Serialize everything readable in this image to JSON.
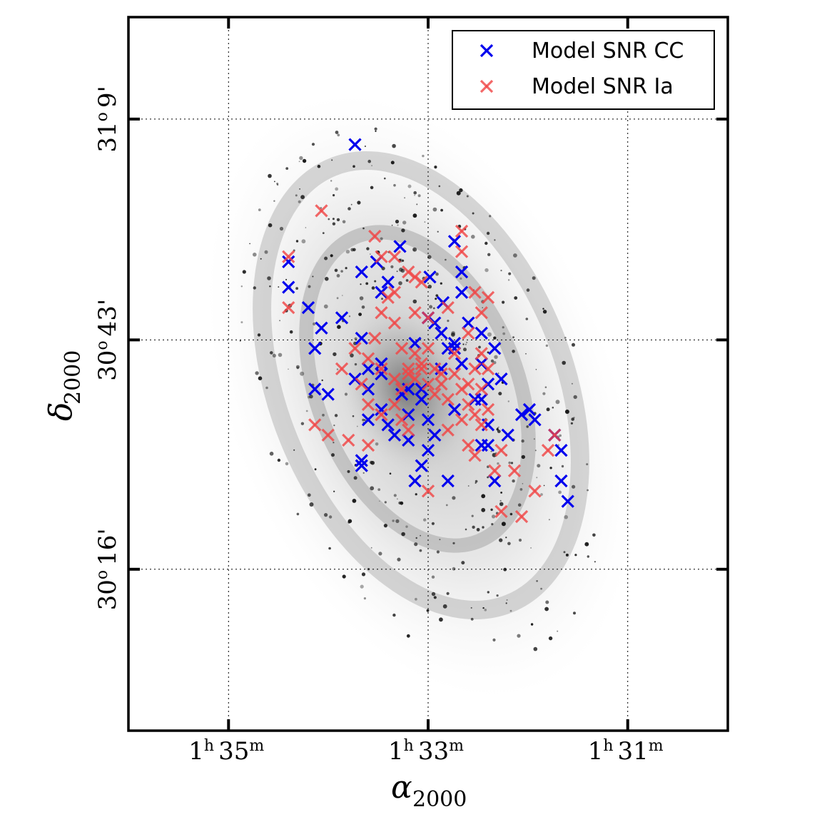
{
  "chart_data": {
    "type": "scatter",
    "background_image": "grayscale galaxy map (M33-like spiral galaxy)",
    "x_axis": {
      "label_symbol": "α",
      "label_subscript": "2000",
      "unit": "RA (hours)",
      "ticks": [
        {
          "value": 1.5833,
          "h": "1",
          "m": "35"
        },
        {
          "value": 1.55,
          "h": "1",
          "m": "33"
        },
        {
          "value": 1.5167,
          "h": "1",
          "m": "31"
        }
      ],
      "range": [
        1.6,
        1.5
      ]
    },
    "y_axis": {
      "label_symbol": "δ",
      "label_subscript": "2000",
      "unit": "Dec (degrees)",
      "ticks": [
        {
          "value": 31.15,
          "deg": "31",
          "min": "9'"
        },
        {
          "value": 30.7167,
          "deg": "30",
          "min": "43'"
        },
        {
          "value": 30.2667,
          "deg": "30",
          "min": "16'"
        }
      ],
      "range": [
        29.95,
        31.35
      ]
    },
    "grid": true,
    "legend": {
      "placement": "top-right",
      "entries": [
        {
          "label": "Model SNR CC",
          "color": "#0000ee"
        },
        {
          "label": "Model SNR Ia",
          "color": "#f04545"
        }
      ]
    },
    "series": [
      {
        "name": "Model SNR CC",
        "color": "#0000ee",
        "points": [
          [
            1.5733,
            30.87
          ],
          [
            1.5733,
            30.82
          ],
          [
            1.5622,
            31.1
          ],
          [
            1.5611,
            30.85
          ],
          [
            1.5567,
            30.83
          ],
          [
            1.5586,
            30.87
          ],
          [
            1.5578,
            30.81
          ],
          [
            1.5547,
            30.9
          ],
          [
            1.5497,
            30.84
          ],
          [
            1.5475,
            30.79
          ],
          [
            1.5456,
            30.91
          ],
          [
            1.5444,
            30.85
          ],
          [
            1.5444,
            30.81
          ],
          [
            1.5689,
            30.7
          ],
          [
            1.57,
            30.78
          ],
          [
            1.5678,
            30.74
          ],
          [
            1.5644,
            30.76
          ],
          [
            1.5611,
            30.72
          ],
          [
            1.56,
            30.66
          ],
          [
            1.5689,
            30.62
          ],
          [
            1.5667,
            30.61
          ],
          [
            1.56,
            30.62
          ],
          [
            1.5578,
            30.65
          ],
          [
            1.56,
            30.56
          ],
          [
            1.5611,
            30.48
          ],
          [
            1.5611,
            30.47
          ],
          [
            1.5567,
            30.55
          ],
          [
            1.5556,
            30.53
          ],
          [
            1.5533,
            30.62
          ],
          [
            1.5511,
            30.6
          ],
          [
            1.55,
            30.56
          ],
          [
            1.5489,
            30.53
          ],
          [
            1.5478,
            30.66
          ],
          [
            1.5467,
            30.7
          ],
          [
            1.5456,
            30.71
          ],
          [
            1.5456,
            30.58
          ],
          [
            1.5444,
            30.67
          ],
          [
            1.5422,
            30.6
          ],
          [
            1.5411,
            30.67
          ],
          [
            1.5411,
            30.6
          ],
          [
            1.54,
            30.55
          ],
          [
            1.5411,
            30.51
          ],
          [
            1.5344,
            30.57
          ],
          [
            1.5331,
            30.58
          ],
          [
            1.5322,
            30.56
          ],
          [
            1.5289,
            30.53
          ],
          [
            1.5278,
            30.5
          ],
          [
            1.5278,
            30.44
          ],
          [
            1.5267,
            30.4
          ],
          [
            1.5389,
            30.44
          ],
          [
            1.54,
            30.51
          ],
          [
            1.5522,
            30.44
          ],
          [
            1.5467,
            30.44
          ],
          [
            1.55,
            30.5
          ],
          [
            1.5533,
            30.52
          ],
          [
            1.5578,
            30.67
          ],
          [
            1.5522,
            30.71
          ],
          [
            1.5511,
            30.62
          ],
          [
            1.5478,
            30.73
          ],
          [
            1.5433,
            30.75
          ],
          [
            1.54,
            30.63
          ],
          [
            1.5389,
            30.7
          ],
          [
            1.5378,
            30.64
          ],
          [
            1.5411,
            30.73
          ],
          [
            1.55,
            30.76
          ],
          [
            1.5533,
            30.57
          ],
          [
            1.5367,
            30.53
          ],
          [
            1.5622,
            30.64
          ],
          [
            1.5578,
            30.58
          ],
          [
            1.5544,
            30.61
          ],
          [
            1.5511,
            30.47
          ],
          [
            1.5456,
            30.7
          ],
          [
            1.5489,
            30.75
          ]
        ]
      },
      {
        "name": "Model SNR Ia",
        "color": "#f04545",
        "points": [
          [
            1.5733,
            30.88
          ],
          [
            1.5733,
            30.78
          ],
          [
            1.5678,
            30.97
          ],
          [
            1.5589,
            30.92
          ],
          [
            1.5578,
            30.88
          ],
          [
            1.5556,
            30.88
          ],
          [
            1.5533,
            30.85
          ],
          [
            1.5522,
            30.84
          ],
          [
            1.5511,
            30.83
          ],
          [
            1.5444,
            30.93
          ],
          [
            1.5444,
            30.89
          ],
          [
            1.5422,
            30.81
          ],
          [
            1.5433,
            30.73
          ],
          [
            1.5411,
            30.69
          ],
          [
            1.54,
            30.66
          ],
          [
            1.5644,
            30.66
          ],
          [
            1.5622,
            30.7
          ],
          [
            1.5611,
            30.63
          ],
          [
            1.56,
            30.68
          ],
          [
            1.5589,
            30.72
          ],
          [
            1.5578,
            30.77
          ],
          [
            1.5567,
            30.8
          ],
          [
            1.5556,
            30.75
          ],
          [
            1.5544,
            30.7
          ],
          [
            1.5533,
            30.66
          ],
          [
            1.5522,
            30.64
          ],
          [
            1.5511,
            30.67
          ],
          [
            1.55,
            30.7
          ],
          [
            1.5489,
            30.66
          ],
          [
            1.5478,
            30.63
          ],
          [
            1.5467,
            30.6
          ],
          [
            1.5456,
            30.65
          ],
          [
            1.5444,
            30.62
          ],
          [
            1.5433,
            30.59
          ],
          [
            1.5422,
            30.57
          ],
          [
            1.5411,
            30.55
          ],
          [
            1.54,
            30.58
          ],
          [
            1.5378,
            30.5
          ],
          [
            1.5356,
            30.46
          ],
          [
            1.5322,
            30.42
          ],
          [
            1.53,
            30.5
          ],
          [
            1.5289,
            30.53
          ],
          [
            1.56,
            30.51
          ],
          [
            1.5578,
            30.57
          ],
          [
            1.5556,
            30.59
          ],
          [
            1.5544,
            30.56
          ],
          [
            1.5533,
            30.54
          ],
          [
            1.55,
            30.42
          ],
          [
            1.5467,
            30.54
          ],
          [
            1.5444,
            30.56
          ],
          [
            1.5433,
            30.51
          ],
          [
            1.5422,
            30.49
          ],
          [
            1.5389,
            30.46
          ],
          [
            1.5378,
            30.38
          ],
          [
            1.5344,
            30.37
          ],
          [
            1.5689,
            30.55
          ],
          [
            1.5667,
            30.53
          ],
          [
            1.5633,
            30.52
          ],
          [
            1.56,
            30.59
          ],
          [
            1.5578,
            30.66
          ],
          [
            1.5556,
            30.64
          ],
          [
            1.5544,
            30.62
          ],
          [
            1.5533,
            30.65
          ],
          [
            1.5522,
            30.69
          ],
          [
            1.5511,
            30.66
          ],
          [
            1.55,
            30.63
          ],
          [
            1.5489,
            30.61
          ],
          [
            1.5478,
            30.65
          ],
          [
            1.5456,
            30.69
          ],
          [
            1.5433,
            30.63
          ],
          [
            1.5422,
            30.66
          ],
          [
            1.5411,
            30.62
          ],
          [
            1.55,
            30.76
          ],
          [
            1.5467,
            30.78
          ],
          [
            1.5411,
            30.77
          ],
          [
            1.54,
            30.8
          ],
          [
            1.5556,
            30.81
          ],
          [
            1.5522,
            30.77
          ]
        ]
      }
    ]
  }
}
